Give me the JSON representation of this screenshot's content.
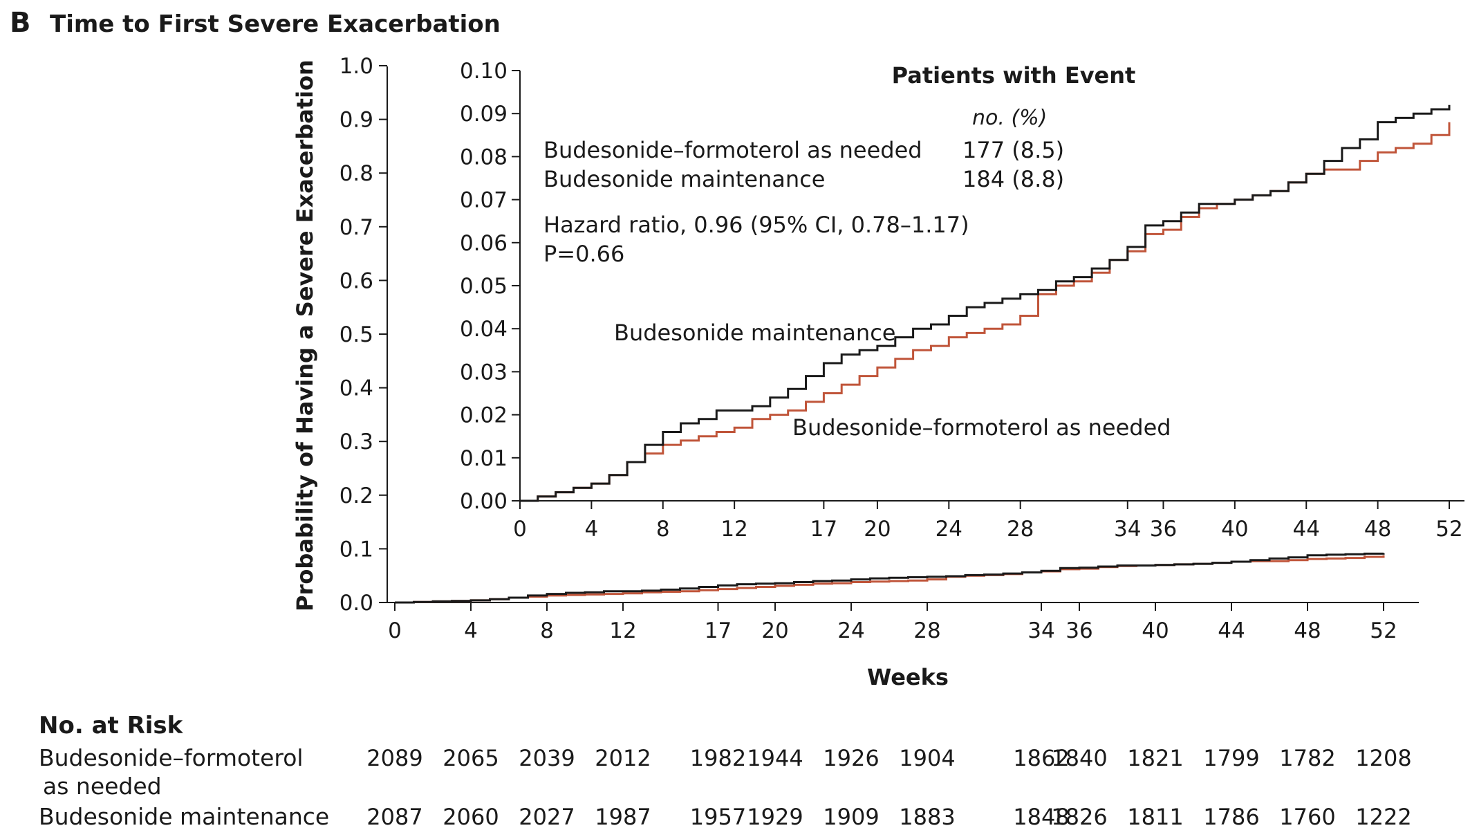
{
  "panel_letter": "B",
  "title": "Time to First Severe Exacerbation",
  "chart_data": {
    "type": "line",
    "title": "Time to First Severe Exacerbation",
    "xlabel": "Weeks",
    "ylabel": "Probability of Having a Severe Exacerbation",
    "xticks": [
      0,
      4,
      8,
      12,
      17,
      20,
      24,
      28,
      34,
      36,
      40,
      44,
      48,
      52
    ],
    "main_ylim": [
      0.0,
      1.0
    ],
    "main_yticks": [
      "0.0",
      "0.1",
      "0.2",
      "0.3",
      "0.4",
      "0.5",
      "0.6",
      "0.7",
      "0.8",
      "0.9",
      "1.0"
    ],
    "inset_ylim": [
      0.0,
      0.1
    ],
    "inset_yticks": [
      "0.00",
      "0.01",
      "0.02",
      "0.03",
      "0.04",
      "0.05",
      "0.06",
      "0.07",
      "0.08",
      "0.09",
      "0.10"
    ],
    "colors": {
      "maintenance": "#1a1a1a",
      "as_needed": "#c0553a"
    },
    "series": [
      {
        "name": "Budesonide maintenance",
        "key": "maintenance",
        "color": "#1a1a1a",
        "x": [
          0,
          1,
          2,
          3,
          4,
          5,
          6,
          7,
          8,
          9,
          10,
          11,
          12,
          13,
          14,
          15,
          16,
          17,
          18,
          19,
          20,
          21,
          22,
          23,
          24,
          25,
          26,
          27,
          28,
          29,
          30,
          31,
          32,
          33,
          34,
          35,
          36,
          37,
          38,
          39,
          40,
          41,
          42,
          43,
          44,
          45,
          46,
          47,
          48,
          49,
          50,
          51,
          52
        ],
        "y": [
          0.0,
          0.001,
          0.002,
          0.003,
          0.004,
          0.006,
          0.009,
          0.013,
          0.016,
          0.018,
          0.019,
          0.021,
          0.021,
          0.022,
          0.024,
          0.026,
          0.029,
          0.032,
          0.034,
          0.035,
          0.036,
          0.038,
          0.04,
          0.041,
          0.043,
          0.045,
          0.046,
          0.047,
          0.048,
          0.049,
          0.051,
          0.052,
          0.054,
          0.056,
          0.059,
          0.064,
          0.065,
          0.067,
          0.069,
          0.069,
          0.07,
          0.071,
          0.072,
          0.074,
          0.076,
          0.079,
          0.082,
          0.084,
          0.088,
          0.089,
          0.09,
          0.091,
          0.092
        ]
      },
      {
        "name": "Budesonide–formoterol as needed",
        "key": "as_needed",
        "color": "#c0553a",
        "x": [
          0,
          1,
          2,
          3,
          4,
          5,
          6,
          7,
          8,
          9,
          10,
          11,
          12,
          13,
          14,
          15,
          16,
          17,
          18,
          19,
          20,
          21,
          22,
          23,
          24,
          25,
          26,
          27,
          28,
          29,
          30,
          31,
          32,
          33,
          34,
          35,
          36,
          37,
          38,
          39,
          40,
          41,
          42,
          43,
          44,
          45,
          46,
          47,
          48,
          49,
          50,
          51,
          52
        ],
        "y": [
          0.0,
          0.001,
          0.002,
          0.003,
          0.004,
          0.006,
          0.009,
          0.011,
          0.013,
          0.014,
          0.015,
          0.016,
          0.017,
          0.019,
          0.02,
          0.021,
          0.023,
          0.025,
          0.027,
          0.029,
          0.031,
          0.033,
          0.035,
          0.036,
          0.038,
          0.039,
          0.04,
          0.041,
          0.043,
          0.048,
          0.05,
          0.051,
          0.053,
          0.056,
          0.058,
          0.062,
          0.063,
          0.066,
          0.068,
          0.069,
          0.07,
          0.071,
          0.072,
          0.074,
          0.076,
          0.077,
          0.077,
          0.079,
          0.081,
          0.082,
          0.083,
          0.085,
          0.088
        ]
      }
    ],
    "curve_labels": {
      "maintenance": "Budesonide maintenance",
      "as_needed": "Budesonide–formoterol as needed"
    },
    "legend": {
      "header": "Patients with Event",
      "subheader": "no. (%)",
      "rows": [
        {
          "label": "Budesonide–formoterol as needed",
          "value": "177 (8.5)"
        },
        {
          "label": "Budesonide maintenance",
          "value": "184 (8.8)"
        }
      ]
    },
    "annotations": {
      "hazard_ratio": "Hazard ratio, 0.96 (95% CI, 0.78–1.17)",
      "p_value": "P=0.66"
    },
    "risk_table": {
      "title": "No. at Risk",
      "rows": [
        {
          "label_line1": "Budesonide–formoterol",
          "label_line2": "as needed",
          "values": [
            "2089",
            "2065",
            "2039",
            "2012",
            "1982",
            "1944",
            "1926",
            "1904",
            "1862",
            "1840",
            "1821",
            "1799",
            "1782",
            "1208"
          ]
        },
        {
          "label_line1": "Budesonide maintenance",
          "label_line2": "",
          "values": [
            "2087",
            "2060",
            "2027",
            "1987",
            "1957",
            "1929",
            "1909",
            "1883",
            "1848",
            "1826",
            "1811",
            "1786",
            "1760",
            "1222"
          ]
        }
      ]
    }
  }
}
